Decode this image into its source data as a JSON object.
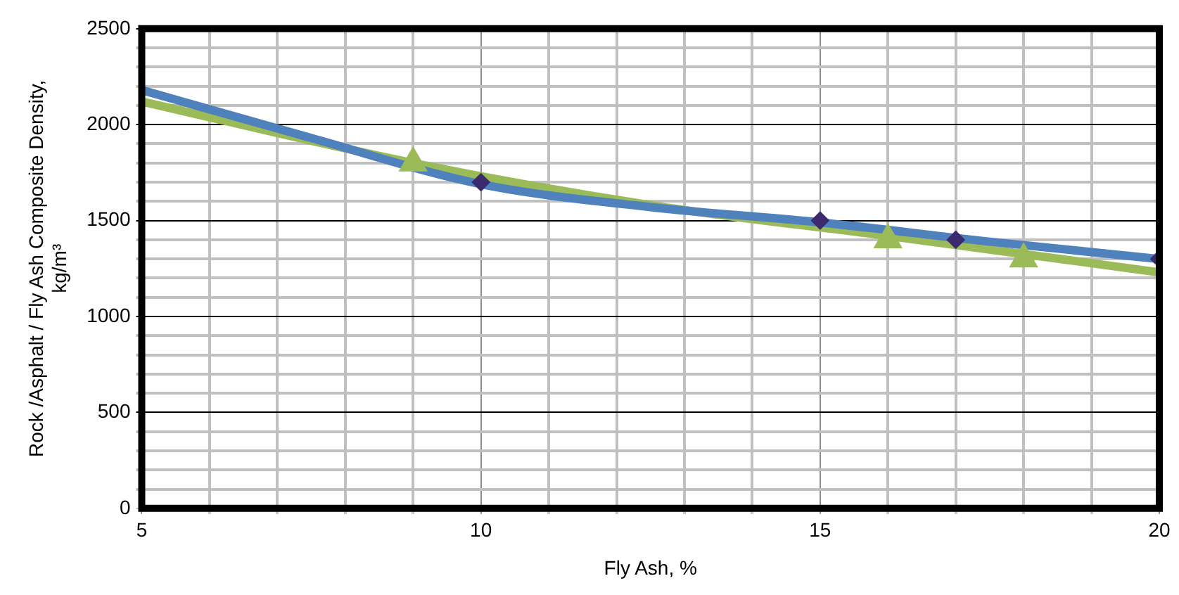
{
  "chart_data": {
    "type": "scatter",
    "xlabel": "Fly Ash, %",
    "ylabel": "Rock /Asphalt / Fly Ash Composite Density, kg/m³",
    "xlim": [
      5,
      20
    ],
    "xticks": [
      5,
      {
        "value": 6,
        "label": null
      },
      {
        "value": 7,
        "label": null
      },
      {
        "value": 8,
        "label": null
      },
      {
        "value": 9,
        "label": null
      },
      10,
      {
        "value": 11,
        "label": null
      },
      {
        "value": 12,
        "label": null
      },
      {
        "value": 13,
        "label": null
      },
      {
        "value": 14,
        "label": null
      },
      15,
      {
        "value": 16,
        "label": null
      },
      {
        "value": 17,
        "label": null
      },
      {
        "value": 18,
        "label": null
      },
      {
        "value": 19,
        "label": null
      },
      20
    ],
    "ylim": [
      0,
      2500
    ],
    "yticks": [
      0,
      {
        "value": 100,
        "label": null
      },
      {
        "value": 200,
        "label": null
      },
      {
        "value": 300,
        "label": null
      },
      {
        "value": 400,
        "label": null
      },
      500,
      {
        "value": 600,
        "label": null
      },
      {
        "value": 700,
        "label": null
      },
      {
        "value": 800,
        "label": null
      },
      {
        "value": 900,
        "label": null
      },
      1000,
      {
        "value": 1100,
        "label": null
      },
      {
        "value": 1200,
        "label": null
      },
      {
        "value": 1300,
        "label": null
      },
      {
        "value": 1400,
        "label": null
      },
      1500,
      {
        "value": 1600,
        "label": null
      },
      {
        "value": 1700,
        "label": null
      },
      {
        "value": 1800,
        "label": null
      },
      {
        "value": 1900,
        "label": null
      },
      2000,
      {
        "value": 2100,
        "label": null
      },
      {
        "value": 2200,
        "label": null
      },
      {
        "value": 2300,
        "label": null
      },
      {
        "value": 2400,
        "label": null
      },
      2500
    ],
    "grid": true,
    "legend": false,
    "series": [
      {
        "type": "line",
        "color": "#4f81bd",
        "marker": "none",
        "x": [
          5,
          7.5,
          10,
          12.5,
          15,
          17.5,
          20
        ],
        "values": [
          2180,
          1930,
          1690,
          1570,
          1490,
          1390,
          1300
        ]
      },
      {
        "type": "line",
        "color": "#9bbb59",
        "marker": "none",
        "x": [
          5,
          9,
          12.5,
          16,
          20
        ],
        "values": [
          2120,
          1800,
          1580,
          1420,
          1230
        ]
      },
      {
        "type": "scatter",
        "color": "#3b2a6e",
        "marker": "diamond",
        "x": [
          10,
          15,
          17,
          20
        ],
        "values": [
          1700,
          1500,
          1400,
          1300
        ]
      },
      {
        "type": "scatter",
        "color": "#9bbb59",
        "marker": "triangle",
        "x": [
          9,
          16,
          18
        ],
        "values": [
          1800,
          1400,
          1300
        ]
      }
    ]
  }
}
